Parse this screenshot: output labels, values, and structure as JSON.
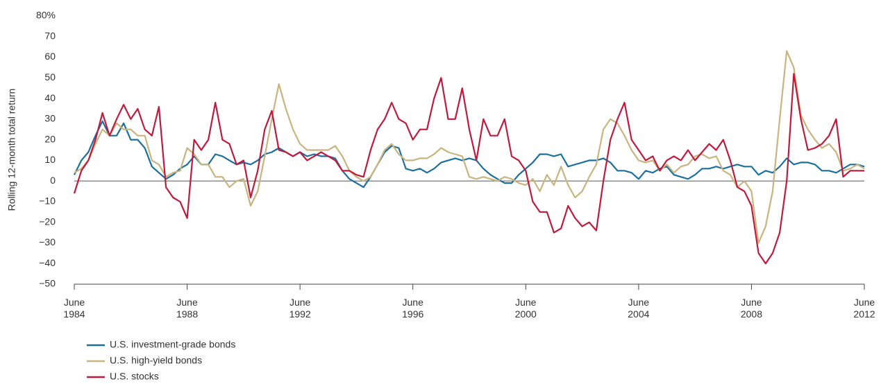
{
  "chart_data": {
    "type": "line",
    "ylabel": "Rolling 12-month total return",
    "x": [
      1984.5,
      1984.75,
      1985,
      1985.25,
      1985.5,
      1985.75,
      1986,
      1986.25,
      1986.5,
      1986.75,
      1987,
      1987.25,
      1987.5,
      1987.75,
      1988,
      1988.25,
      1988.5,
      1988.75,
      1989,
      1989.25,
      1989.5,
      1989.75,
      1990,
      1990.25,
      1990.5,
      1990.75,
      1991,
      1991.25,
      1991.5,
      1991.75,
      1992,
      1992.25,
      1992.5,
      1992.75,
      1993,
      1993.25,
      1993.5,
      1993.75,
      1994,
      1994.25,
      1994.5,
      1994.75,
      1995,
      1995.25,
      1995.5,
      1995.75,
      1996,
      1996.25,
      1996.5,
      1996.75,
      1997,
      1997.25,
      1997.5,
      1997.75,
      1998,
      1998.25,
      1998.5,
      1998.75,
      1999,
      1999.25,
      1999.5,
      1999.75,
      2000,
      2000.25,
      2000.5,
      2000.75,
      2001,
      2001.25,
      2001.5,
      2001.75,
      2002,
      2002.25,
      2002.5,
      2002.75,
      2003,
      2003.25,
      2003.5,
      2003.75,
      2004,
      2004.25,
      2004.5,
      2004.75,
      2005,
      2005.25,
      2005.5,
      2005.75,
      2006,
      2006.25,
      2006.5,
      2006.75,
      2007,
      2007.25,
      2007.5,
      2007.75,
      2008,
      2008.25,
      2008.5,
      2008.75,
      2009,
      2009.25,
      2009.5,
      2009.75,
      2010,
      2010.25,
      2010.5,
      2010.75,
      2011,
      2011.25,
      2011.5,
      2011.75,
      2012,
      2012.25,
      2012.5
    ],
    "series": [
      {
        "name": "U.S. investment-grade bonds",
        "color": "#1b6f9d",
        "values": [
          3,
          10,
          14,
          22,
          29,
          22,
          22,
          28,
          20,
          20,
          16,
          7,
          4,
          1,
          3,
          6,
          8,
          12,
          8,
          8,
          13,
          12,
          10,
          8,
          9,
          8,
          10,
          13,
          14,
          16,
          14,
          12,
          14,
          12,
          13,
          12,
          12,
          11,
          5,
          1,
          -1,
          -3,
          2,
          8,
          14,
          17,
          16,
          6,
          5,
          6,
          4,
          6,
          9,
          10,
          11,
          10,
          11,
          10,
          6,
          3,
          1,
          -1,
          -1,
          3,
          6,
          9,
          13,
          13,
          12,
          13,
          7,
          8,
          9,
          10,
          10,
          11,
          9,
          5,
          5,
          4,
          1,
          5,
          4,
          6,
          7,
          3,
          2,
          1,
          3,
          6,
          6,
          7,
          6,
          7,
          8,
          7,
          7,
          3,
          5,
          4,
          7,
          11,
          8,
          9,
          9,
          8,
          5,
          5,
          4,
          6,
          8,
          8,
          7
        ]
      },
      {
        "name": "U.S. high-yield bonds",
        "color": "#c9b47f",
        "values": [
          4,
          6,
          10,
          18,
          25,
          22,
          28,
          25,
          25,
          22,
          22,
          10,
          8,
          2,
          4,
          5,
          16,
          13,
          8,
          8,
          2,
          2,
          -3,
          0,
          1,
          -12,
          -5,
          12,
          30,
          47,
          35,
          25,
          18,
          15,
          15,
          15,
          15,
          17,
          12,
          5,
          2,
          0,
          2,
          8,
          15,
          18,
          13,
          10,
          10,
          11,
          11,
          13,
          16,
          14,
          13,
          12,
          2,
          1,
          2,
          1,
          0,
          2,
          1,
          -1,
          -2,
          1,
          -5,
          3,
          -2,
          7,
          -2,
          -8,
          -5,
          2,
          8,
          25,
          30,
          28,
          22,
          15,
          10,
          9,
          10,
          5,
          8,
          4,
          7,
          8,
          12,
          13,
          11,
          12,
          5,
          3,
          -3,
          0,
          -5,
          -30,
          -22,
          -5,
          30,
          63,
          55,
          32,
          25,
          20,
          16,
          18,
          14,
          5,
          6,
          8,
          6
        ]
      },
      {
        "name": "U.S. stocks",
        "color": "#c2183b",
        "values": [
          -6,
          5,
          10,
          20,
          33,
          22,
          30,
          37,
          30,
          35,
          25,
          22,
          36,
          -3,
          -8,
          -10,
          -18,
          20,
          15,
          20,
          38,
          20,
          18,
          8,
          10,
          -8,
          5,
          25,
          34,
          15,
          14,
          12,
          14,
          10,
          12,
          14,
          12,
          10,
          5,
          5,
          3,
          2,
          15,
          25,
          30,
          38,
          30,
          28,
          20,
          25,
          25,
          40,
          50,
          30,
          30,
          45,
          25,
          10,
          30,
          22,
          22,
          30,
          12,
          10,
          5,
          -10,
          -15,
          -15,
          -25,
          -23,
          -12,
          -18,
          -22,
          -20,
          -24,
          0,
          20,
          30,
          38,
          20,
          15,
          10,
          12,
          5,
          10,
          12,
          10,
          15,
          10,
          14,
          18,
          15,
          20,
          10,
          -3,
          -5,
          -12,
          -35,
          -40,
          -35,
          -25,
          0,
          52,
          30,
          15,
          16,
          18,
          22,
          30,
          2,
          5,
          5,
          5
        ]
      }
    ],
    "xlim": [
      1984.5,
      2012.5
    ],
    "xticks": [
      {
        "value": 1984.5,
        "label": "June 1984"
      },
      {
        "value": 1988.5,
        "label": "June 1988"
      },
      {
        "value": 1992.5,
        "label": "June 1992"
      },
      {
        "value": 1996.5,
        "label": "June 1996"
      },
      {
        "value": 2000.5,
        "label": "June 2000"
      },
      {
        "value": 2004.5,
        "label": "June 2004"
      },
      {
        "value": 2008.5,
        "label": "June 2008"
      },
      {
        "value": 2012.5,
        "label": "June 2012"
      }
    ],
    "ylim": [
      -50,
      80
    ],
    "yticks": [
      {
        "value": -50,
        "label": "−50"
      },
      {
        "value": -40,
        "label": "−40"
      },
      {
        "value": -30,
        "label": "−30"
      },
      {
        "value": -20,
        "label": "−20"
      },
      {
        "value": -10,
        "label": "−10"
      },
      0,
      10,
      20,
      30,
      40,
      50,
      60,
      70,
      {
        "value": 80,
        "label": "80%"
      }
    ],
    "zero_line": 0
  }
}
